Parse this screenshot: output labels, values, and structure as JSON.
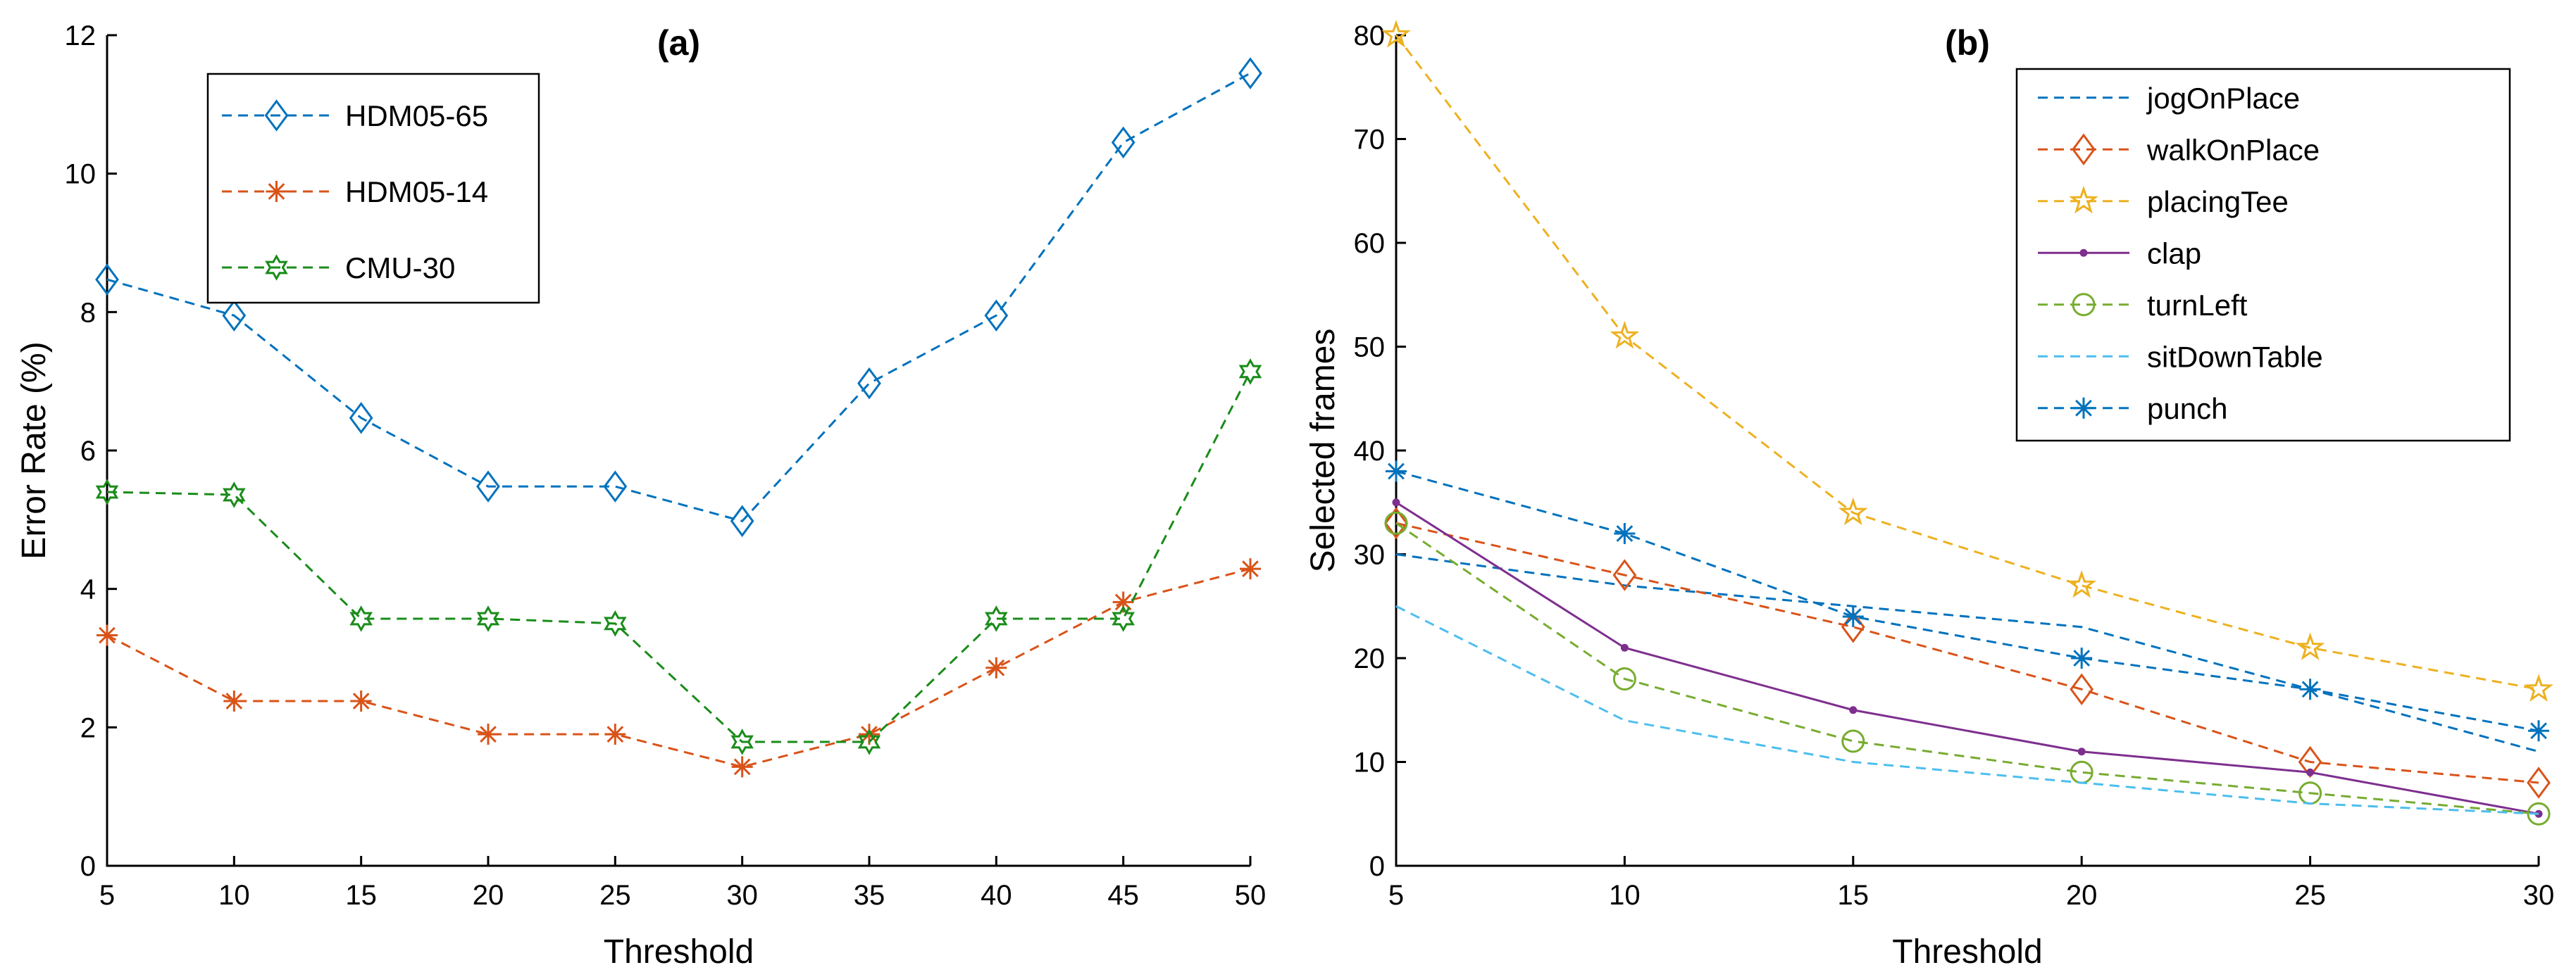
{
  "chart_data": [
    {
      "type": "line",
      "title": "(a)",
      "xlabel": "Threshold",
      "ylabel": "Error Rate (%)",
      "xlim": [
        5,
        50
      ],
      "ylim": [
        0,
        12
      ],
      "xticks": [
        5,
        10,
        15,
        20,
        25,
        30,
        35,
        40,
        45,
        50
      ],
      "yticks": [
        0,
        2,
        4,
        6,
        8,
        10,
        12
      ],
      "legend_position": "top-left",
      "x": [
        5,
        10,
        15,
        20,
        25,
        30,
        35,
        40,
        45,
        50
      ],
      "series": [
        {
          "name": "HDM05-65",
          "color": "#0072BD",
          "dash": "dashed",
          "marker": "diamond",
          "values": [
            8.47,
            7.95,
            6.47,
            5.48,
            5.48,
            4.98,
            6.97,
            7.95,
            10.45,
            11.45
          ]
        },
        {
          "name": "HDM05-14",
          "color": "#D95319",
          "dash": "dashed",
          "marker": "asterisk",
          "values": [
            3.33,
            2.38,
            2.38,
            1.9,
            1.9,
            1.43,
            1.9,
            2.86,
            3.81,
            4.29
          ]
        },
        {
          "name": "CMU-30",
          "color": "#1A8C1A",
          "dash": "dashed",
          "marker": "hexagram",
          "values": [
            5.4,
            5.36,
            3.57,
            3.57,
            3.5,
            1.79,
            1.79,
            3.57,
            3.57,
            7.14
          ]
        }
      ]
    },
    {
      "type": "line",
      "title": "(b)",
      "xlabel": "Threshold",
      "ylabel": "Selected frames",
      "xlim": [
        5,
        30
      ],
      "ylim": [
        0,
        80
      ],
      "xticks": [
        5,
        10,
        15,
        20,
        25,
        30
      ],
      "yticks": [
        0,
        10,
        20,
        30,
        40,
        50,
        60,
        70,
        80
      ],
      "legend_position": "top-right",
      "x": [
        5,
        10,
        15,
        20,
        25,
        30
      ],
      "series": [
        {
          "name": "jogOnPlace",
          "color": "#0072BD",
          "dash": "dashed",
          "marker": "none",
          "values": [
            30,
            27,
            25,
            23,
            17,
            11
          ]
        },
        {
          "name": "walkOnPlace",
          "color": "#D95319",
          "dash": "dashed",
          "marker": "diamond",
          "values": [
            33,
            28,
            23,
            17,
            10,
            8
          ]
        },
        {
          "name": "placingTee",
          "color": "#EDB120",
          "dash": "dashed",
          "marker": "pentagram",
          "values": [
            80,
            51,
            34,
            27,
            21,
            17
          ]
        },
        {
          "name": "clap",
          "color": "#7E2F8E",
          "dash": "solid",
          "marker": "dot",
          "values": [
            35,
            21,
            15,
            11,
            9,
            5
          ]
        },
        {
          "name": "turnLeft",
          "color": "#77AC30",
          "dash": "dashed",
          "marker": "circle",
          "values": [
            33,
            18,
            12,
            9,
            7,
            5
          ]
        },
        {
          "name": "sitDownTable",
          "color": "#4DBEEE",
          "dash": "dashed",
          "marker": "none",
          "values": [
            25,
            14,
            10,
            8,
            6,
            5
          ]
        },
        {
          "name": "punch",
          "color": "#0072BD",
          "dash": "dashed",
          "marker": "asterisk",
          "values": [
            38,
            32,
            24,
            20,
            17,
            13
          ]
        }
      ]
    }
  ]
}
